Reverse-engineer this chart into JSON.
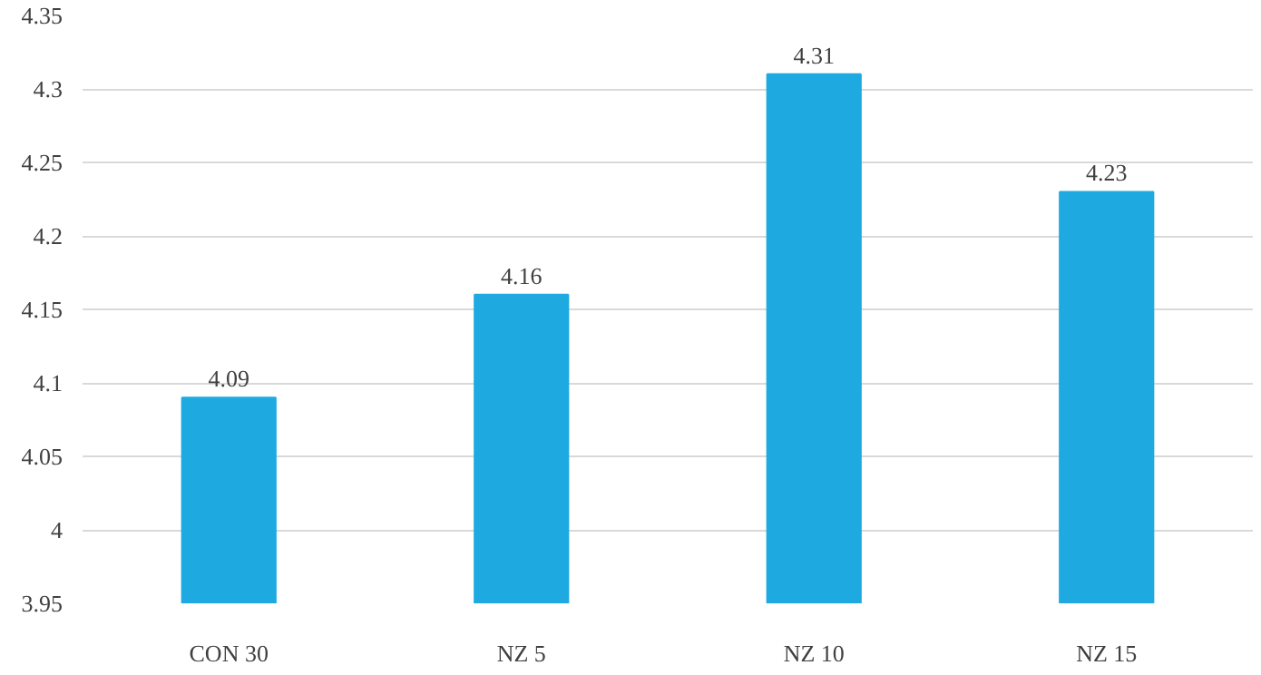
{
  "chart_data": {
    "type": "bar",
    "categories": [
      "CON 30",
      "NZ 5",
      "NZ 10",
      "NZ 15"
    ],
    "values": [
      4.09,
      4.16,
      4.31,
      4.23
    ],
    "color": "#1eaae1",
    "ylim": [
      3.95,
      4.35
    ],
    "yticks": [
      3.95,
      4,
      4.05,
      4.1,
      4.15,
      4.2,
      4.25,
      4.3,
      4.35
    ],
    "grid": "y",
    "data_labels": true
  }
}
